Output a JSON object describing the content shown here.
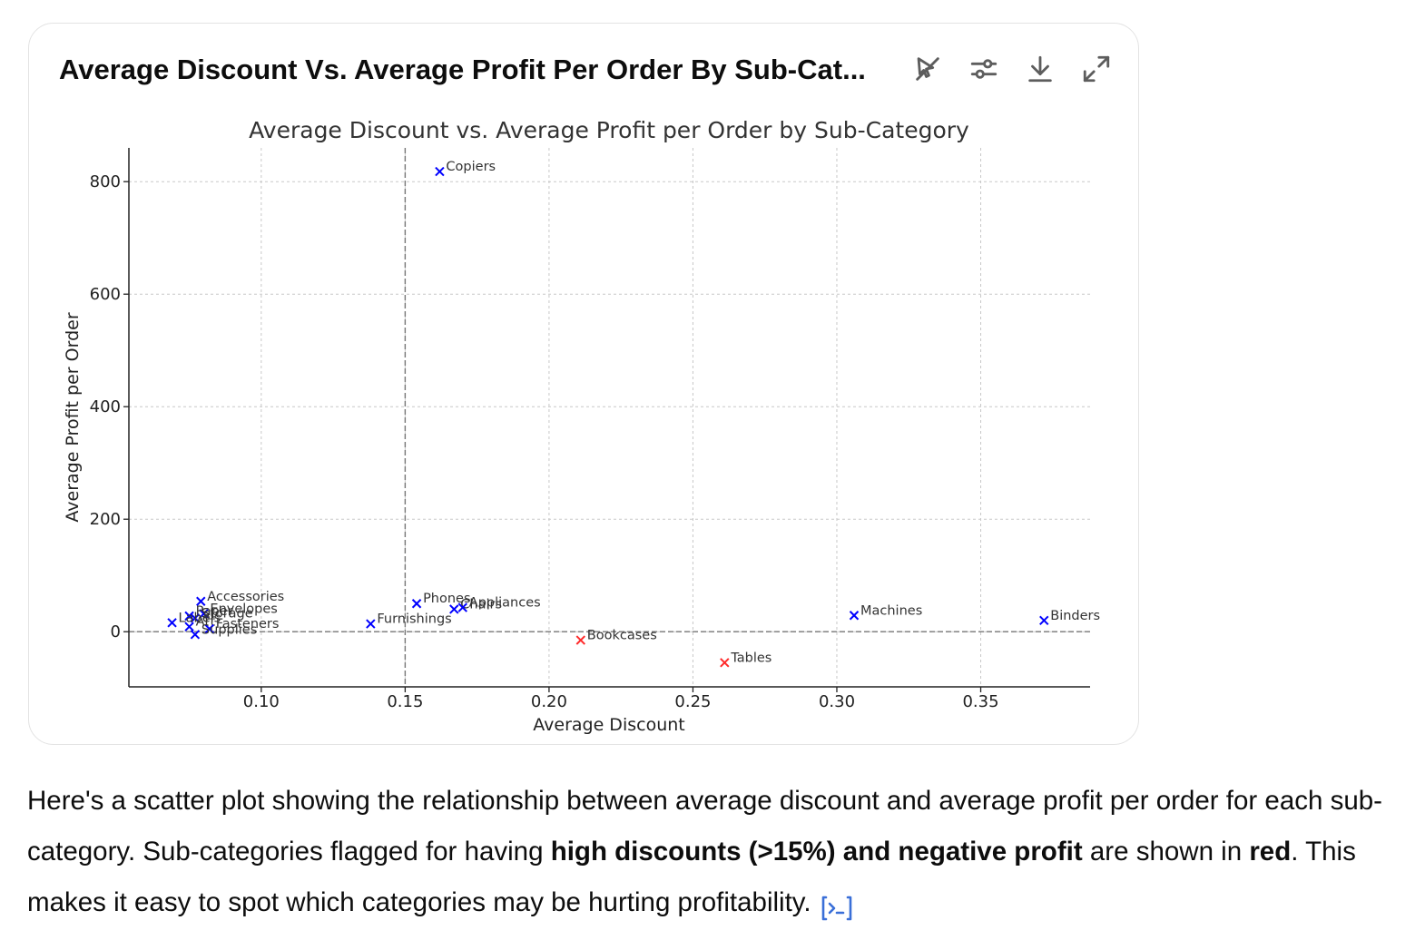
{
  "card": {
    "title": "Average Discount Vs. Average Profit Per Order By Sub-Cat...",
    "tools": [
      {
        "name": "hide-interactive-icon"
      },
      {
        "name": "settings-sliders-icon"
      },
      {
        "name": "download-icon"
      },
      {
        "name": "expand-icon"
      }
    ]
  },
  "colors": {
    "normal": "#0000ff",
    "flagged": "#ff2a2a",
    "grid": "#c8c8c8",
    "refline": "#777777"
  },
  "chart_data": {
    "type": "scatter",
    "title": "Average Discount vs. Average Profit per Order by Sub-Category",
    "xlabel": "Average Discount",
    "ylabel": "Average Profit per Order",
    "xlim": [
      0.054,
      0.388
    ],
    "ylim": [
      -98,
      860
    ],
    "xticks": [
      0.1,
      0.15,
      0.2,
      0.25,
      0.3,
      0.35
    ],
    "xtick_labels": [
      "0.10",
      "0.15",
      "0.20",
      "0.25",
      "0.30",
      "0.35"
    ],
    "yticks": [
      0,
      200,
      400,
      600,
      800
    ],
    "ytick_labels": [
      "0",
      "200",
      "400",
      "600",
      "800"
    ],
    "grid": true,
    "reference_lines": {
      "x": 0.15,
      "y": 0
    },
    "marker": "x",
    "points": [
      {
        "label": "Copiers",
        "x": 0.162,
        "y": 818,
        "flagged": false
      },
      {
        "label": "Accessories",
        "x": 0.079,
        "y": 54,
        "flagged": false
      },
      {
        "label": "Envelopes",
        "x": 0.08,
        "y": 32,
        "flagged": false
      },
      {
        "label": "Paper",
        "x": 0.075,
        "y": 28,
        "flagged": false
      },
      {
        "label": "Storage",
        "x": 0.077,
        "y": 24,
        "flagged": false
      },
      {
        "label": "Labels",
        "x": 0.069,
        "y": 16,
        "flagged": false
      },
      {
        "label": "Art",
        "x": 0.075,
        "y": 9,
        "flagged": false
      },
      {
        "label": "Fasteners",
        "x": 0.082,
        "y": 5,
        "flagged": false
      },
      {
        "label": "Supplies",
        "x": 0.077,
        "y": -5,
        "flagged": false
      },
      {
        "label": "Furnishings",
        "x": 0.138,
        "y": 14,
        "flagged": false
      },
      {
        "label": "Phones",
        "x": 0.154,
        "y": 50,
        "flagged": false
      },
      {
        "label": "Chairs",
        "x": 0.167,
        "y": 40,
        "flagged": false
      },
      {
        "label": "Appliances",
        "x": 0.17,
        "y": 43,
        "flagged": false
      },
      {
        "label": "Bookcases",
        "x": 0.211,
        "y": -15,
        "flagged": true
      },
      {
        "label": "Tables",
        "x": 0.261,
        "y": -55,
        "flagged": true
      },
      {
        "label": "Machines",
        "x": 0.306,
        "y": 29,
        "flagged": false
      },
      {
        "label": "Binders",
        "x": 0.372,
        "y": 20,
        "flagged": false
      }
    ]
  },
  "message": {
    "part1": "Here's a scatter plot showing the relationship between average discount and average profit per order for each sub-category. Sub-categories flagged for having ",
    "bold1": "high discounts (>15%) and negative profit",
    "part2": " are shown in ",
    "bold2": "red",
    "part3": ". This makes it easy to spot which categories may be hurting profitability."
  }
}
